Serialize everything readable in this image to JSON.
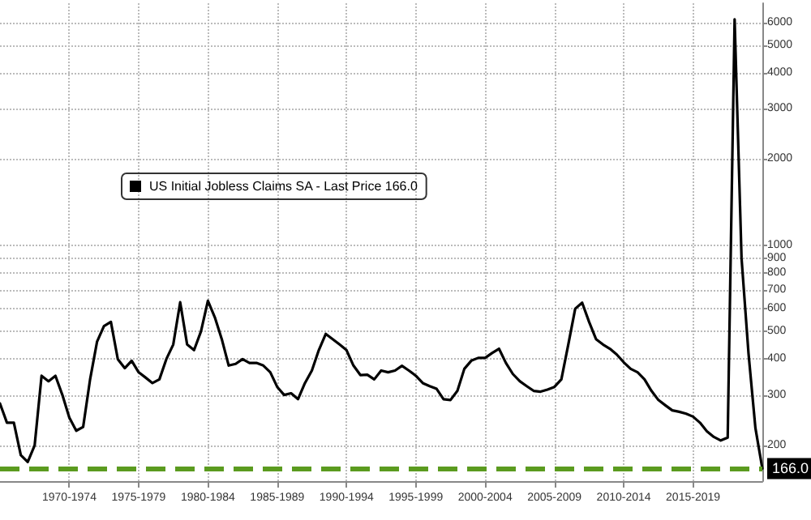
{
  "chart_data": {
    "type": "line",
    "log": "y",
    "grid": true,
    "legend": "top left",
    "marker": "none",
    "line_style": "solid",
    "categories": [
      null,
      null,
      null,
      null,
      null,
      null,
      null,
      null,
      null,
      null,
      "1970-1974",
      null,
      null,
      null,
      null,
      null,
      null,
      null,
      null,
      null,
      "1975-1979",
      null,
      null,
      null,
      null,
      null,
      null,
      null,
      null,
      null,
      "1980-1984",
      null,
      null,
      null,
      null,
      null,
      null,
      null,
      null,
      null,
      "1985-1989",
      null,
      null,
      null,
      null,
      null,
      null,
      null,
      null,
      null,
      "1990-1994",
      null,
      null,
      null,
      null,
      null,
      null,
      null,
      null,
      null,
      "1995-1999",
      null,
      null,
      null,
      null,
      null,
      null,
      null,
      null,
      null,
      "2000-2004",
      null,
      null,
      null,
      null,
      null,
      null,
      null,
      null,
      null,
      "2005-2009",
      null,
      null,
      null,
      null,
      null,
      null,
      null,
      null,
      null,
      "2010-2014",
      null,
      null,
      null,
      null,
      null,
      null,
      null,
      null,
      null,
      "2015-2019",
      null,
      null,
      null,
      null,
      null,
      null,
      null,
      null,
      null,
      null
    ],
    "series": [
      {
        "name": "US Initial Jobless Claims SA - Last Price 166.0",
        "color": "#000000",
        "values": [
          280,
          240,
          240,
          185,
          175,
          200,
          350,
          335,
          350,
          300,
          250,
          225,
          232,
          340,
          460,
          522,
          540,
          400,
          372,
          395,
          360,
          345,
          330,
          340,
          400,
          450,
          632,
          450,
          430,
          500,
          640,
          560,
          470,
          380,
          385,
          400,
          388,
          388,
          380,
          360,
          320,
          300,
          304,
          290,
          330,
          365,
          430,
          490,
          470,
          450,
          430,
          380,
          352,
          353,
          340,
          365,
          360,
          365,
          379,
          365,
          350,
          330,
          322,
          315,
          290,
          288,
          310,
          370,
          395,
          404,
          404,
          420,
          435,
          388,
          355,
          335,
          322,
          310,
          308,
          313,
          320,
          340,
          450,
          600,
          630,
          540,
          470,
          450,
          435,
          415,
          390,
          370,
          360,
          340,
          310,
          288,
          276,
          265,
          262,
          258,
          252,
          240,
          224,
          214,
          208,
          213,
          6150,
          900,
          420,
          230,
          166
        ]
      }
    ],
    "ylim": [
      150,
      7000
    ],
    "yticks": [
      200,
      300,
      400,
      500,
      600,
      700,
      800,
      900,
      1000,
      2000,
      3000,
      4000,
      5000,
      6000
    ],
    "ref_lines": [
      {
        "axis": "y",
        "value": 166,
        "label": "166.0",
        "color": "#5b9b1f",
        "line_style": "dashed"
      }
    ]
  }
}
